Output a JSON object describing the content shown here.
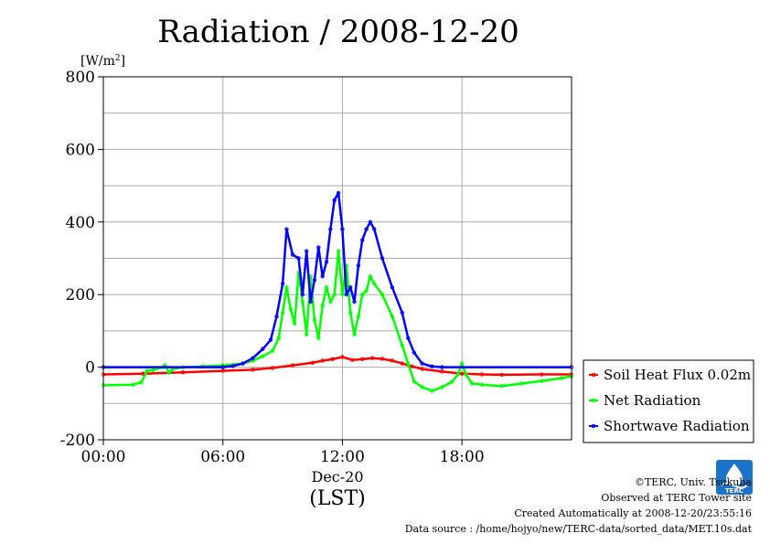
{
  "chart_data": {
    "type": "line",
    "title": "Radiation / 2008-12-20",
    "ylabel": "[W/m2]",
    "ylabel_base": "[W/m",
    "ylabel_sup": "2",
    "ylabel_close": "]",
    "xlabel_date": "Dec-20",
    "xlabel": "(LST)",
    "ylim": [
      -200,
      800
    ],
    "xlim_hours": [
      0,
      23.5
    ],
    "yticks": [
      -200,
      0,
      200,
      400,
      600,
      800
    ],
    "xticks": [
      {
        "hour": 0,
        "label": "00:00"
      },
      {
        "hour": 6,
        "label": "06:00"
      },
      {
        "hour": 12,
        "label": "12:00"
      },
      {
        "hour": 18,
        "label": "18:00"
      }
    ],
    "grid": true,
    "legend_position": "right",
    "series": [
      {
        "name": "Soil Heat Flux 0.02m",
        "color": "#ff0000",
        "points": [
          [
            0,
            -20
          ],
          [
            2,
            -18
          ],
          [
            4,
            -14
          ],
          [
            6,
            -10
          ],
          [
            7.5,
            -7
          ],
          [
            8.5,
            -2
          ],
          [
            9.5,
            5
          ],
          [
            10.5,
            12
          ],
          [
            11,
            18
          ],
          [
            11.5,
            22
          ],
          [
            12,
            28
          ],
          [
            12.5,
            20
          ],
          [
            13,
            22
          ],
          [
            13.5,
            25
          ],
          [
            14,
            23
          ],
          [
            14.5,
            18
          ],
          [
            15,
            10
          ],
          [
            15.5,
            2
          ],
          [
            16,
            -5
          ],
          [
            17,
            -12
          ],
          [
            18,
            -18
          ],
          [
            19,
            -20
          ],
          [
            20,
            -21
          ],
          [
            22,
            -20
          ],
          [
            23.5,
            -20
          ]
        ]
      },
      {
        "name": "Net Radiation",
        "color": "#00ff00",
        "points": [
          [
            0,
            -50
          ],
          [
            1.5,
            -48
          ],
          [
            1.9,
            -42
          ],
          [
            2.2,
            -10
          ],
          [
            2.5,
            -8
          ],
          [
            3,
            0
          ],
          [
            3.1,
            5
          ],
          [
            3.3,
            -15
          ],
          [
            3.5,
            -5
          ],
          [
            4,
            0
          ],
          [
            5,
            2
          ],
          [
            6,
            5
          ],
          [
            7,
            10
          ],
          [
            7.5,
            18
          ],
          [
            8,
            30
          ],
          [
            8.5,
            45
          ],
          [
            8.8,
            80
          ],
          [
            9,
            150
          ],
          [
            9.2,
            220
          ],
          [
            9.4,
            160
          ],
          [
            9.6,
            120
          ],
          [
            9.8,
            260
          ],
          [
            10,
            180
          ],
          [
            10.2,
            90
          ],
          [
            10.4,
            250
          ],
          [
            10.6,
            130
          ],
          [
            10.8,
            80
          ],
          [
            11,
            170
          ],
          [
            11.2,
            220
          ],
          [
            11.4,
            180
          ],
          [
            11.6,
            200
          ],
          [
            11.8,
            320
          ],
          [
            12,
            200
          ],
          [
            12.2,
            280
          ],
          [
            12.4,
            150
          ],
          [
            12.6,
            90
          ],
          [
            12.8,
            140
          ],
          [
            13,
            200
          ],
          [
            13.2,
            210
          ],
          [
            13.4,
            250
          ],
          [
            13.6,
            230
          ],
          [
            14,
            200
          ],
          [
            14.5,
            140
          ],
          [
            15,
            60
          ],
          [
            15.3,
            10
          ],
          [
            15.6,
            -40
          ],
          [
            16,
            -55
          ],
          [
            16.5,
            -65
          ],
          [
            17,
            -55
          ],
          [
            17.5,
            -40
          ],
          [
            17.8,
            -20
          ],
          [
            18,
            10
          ],
          [
            18.2,
            -20
          ],
          [
            18.5,
            -45
          ],
          [
            19,
            -48
          ],
          [
            20,
            -52
          ],
          [
            21,
            -45
          ],
          [
            22,
            -38
          ],
          [
            23,
            -30
          ],
          [
            23.5,
            -25
          ]
        ]
      },
      {
        "name": "Shortwave Radiation",
        "color": "#0000ff",
        "points": [
          [
            0,
            0
          ],
          [
            6,
            0
          ],
          [
            6.5,
            3
          ],
          [
            7,
            10
          ],
          [
            7.5,
            25
          ],
          [
            8,
            50
          ],
          [
            8.4,
            75
          ],
          [
            8.7,
            140
          ],
          [
            9,
            230
          ],
          [
            9.2,
            380
          ],
          [
            9.5,
            310
          ],
          [
            9.8,
            300
          ],
          [
            10,
            200
          ],
          [
            10.2,
            320
          ],
          [
            10.4,
            180
          ],
          [
            10.6,
            240
          ],
          [
            10.8,
            330
          ],
          [
            11,
            250
          ],
          [
            11.2,
            290
          ],
          [
            11.4,
            380
          ],
          [
            11.6,
            460
          ],
          [
            11.8,
            480
          ],
          [
            12,
            380
          ],
          [
            12.2,
            200
          ],
          [
            12.4,
            220
          ],
          [
            12.6,
            180
          ],
          [
            12.8,
            280
          ],
          [
            13,
            350
          ],
          [
            13.2,
            380
          ],
          [
            13.4,
            400
          ],
          [
            13.6,
            380
          ],
          [
            14,
            300
          ],
          [
            14.5,
            220
          ],
          [
            15,
            150
          ],
          [
            15.3,
            80
          ],
          [
            15.6,
            40
          ],
          [
            16,
            10
          ],
          [
            16.5,
            2
          ],
          [
            17,
            0
          ],
          [
            23.5,
            0
          ]
        ]
      }
    ]
  },
  "credits": {
    "copyright": "©TERC, Univ. Tsukuba",
    "site": "Observed at TERC Tower site",
    "created": "Created Automatically at 2008-12-20/23:55:16",
    "source": "Data source : /home/hojyo/new/TERC-data/sorted_data/MET.10s.dat",
    "logo_text": "TERC"
  }
}
